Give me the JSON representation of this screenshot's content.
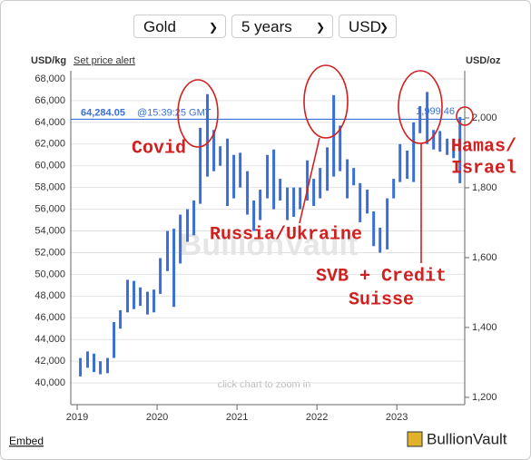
{
  "controls": {
    "metal": "Gold",
    "period": "5 years",
    "currency": "USD"
  },
  "links": {
    "set_price_alert": "Set price alert",
    "embed": "Embed"
  },
  "logo": "BullionVault",
  "chart_data": {
    "type": "range-bar",
    "ylabel": "USD/kg",
    "y2label": "USD/oz",
    "watermark": "BullionVault",
    "zoom_hint": "click chart to zoom in",
    "color": "#3a6fd8",
    "xlim": [
      2018.92,
      2023.85
    ],
    "xticks": [
      2019,
      2020,
      2021,
      2022,
      2023
    ],
    "ylim": [
      38000,
      68750
    ],
    "yticks": [
      {
        "value": 40000,
        "label": "40,000"
      },
      {
        "value": 42000,
        "label": "42,000"
      },
      {
        "value": 44000,
        "label": "44,000"
      },
      {
        "value": 46000,
        "label": "46,000"
      },
      {
        "value": 48000,
        "label": "48,000"
      },
      {
        "value": 50000,
        "label": "50,000"
      },
      {
        "value": 52000,
        "label": "52,000"
      },
      {
        "value": 54000,
        "label": "54,000"
      },
      {
        "value": 56000,
        "label": "56,000"
      },
      {
        "value": 58000,
        "label": "58,000"
      },
      {
        "value": 60000,
        "label": "60,000"
      },
      {
        "value": 62000,
        "label": "62,000"
      },
      {
        "value": 64000,
        "label": "64,000"
      },
      {
        "value": 66000,
        "label": "66,000"
      },
      {
        "value": 68000,
        "label": "68,000"
      }
    ],
    "y2lim": [
      1179,
      2135
    ],
    "y2ticks": [
      {
        "value": 1200,
        "label": "1,200"
      },
      {
        "value": 1400,
        "label": "1,400"
      },
      {
        "value": 1600,
        "label": "1,600"
      },
      {
        "value": 1800,
        "label": "1,800"
      },
      {
        "value": 2000,
        "label": "2,000"
      }
    ],
    "grid": true,
    "price_line": {
      "value": 64284.05,
      "value_label": "64,284.05",
      "time": "@15:39:25 GMT",
      "value_oz": 1999.46,
      "value_oz_label": "1,999.46"
    },
    "x": [
      2019.04,
      2019.13,
      2019.21,
      2019.29,
      2019.38,
      2019.46,
      2019.54,
      2019.63,
      2019.71,
      2019.79,
      2019.88,
      2019.96,
      2020.04,
      2020.13,
      2020.21,
      2020.29,
      2020.38,
      2020.46,
      2020.54,
      2020.63,
      2020.71,
      2020.79,
      2020.88,
      2020.96,
      2021.04,
      2021.13,
      2021.21,
      2021.29,
      2021.38,
      2021.46,
      2021.54,
      2021.63,
      2021.71,
      2021.79,
      2021.88,
      2021.96,
      2022.04,
      2022.13,
      2022.21,
      2022.29,
      2022.38,
      2022.46,
      2022.54,
      2022.63,
      2022.71,
      2022.79,
      2022.88,
      2022.96,
      2023.04,
      2023.13,
      2023.21,
      2023.29,
      2023.38,
      2023.46,
      2023.54,
      2023.63,
      2023.71,
      2023.79
    ],
    "high": [
      42300,
      42900,
      42700,
      42000,
      42300,
      45600,
      46700,
      49500,
      49400,
      48800,
      48400,
      48600,
      51500,
      54000,
      54200,
      55500,
      56000,
      56800,
      63500,
      66600,
      63300,
      61800,
      62500,
      61000,
      61200,
      59500,
      56800,
      57800,
      61000,
      61500,
      58800,
      58000,
      58000,
      58000,
      60500,
      58800,
      59800,
      61700,
      66500,
      63700,
      60600,
      59800,
      58400,
      57800,
      55800,
      54300,
      57000,
      58800,
      62000,
      61400,
      64000,
      65500,
      66800,
      63300,
      63200,
      62500,
      62500,
      64500
    ],
    "low": [
      40600,
      41400,
      41000,
      40800,
      40900,
      42300,
      45000,
      46500,
      46800,
      47100,
      46300,
      46500,
      48200,
      50300,
      47000,
      51000,
      53000,
      53600,
      56500,
      59000,
      59500,
      60000,
      56300,
      57000,
      58000,
      55500,
      54000,
      55000,
      57000,
      56000,
      56800,
      55000,
      55300,
      56000,
      56800,
      56300,
      57000,
      57700,
      59000,
      59500,
      57000,
      58200,
      54800,
      55600,
      52600,
      52000,
      52300,
      57000,
      58500,
      58800,
      58500,
      63000,
      62000,
      61500,
      61300,
      61000,
      60700,
      58400
    ],
    "annotations": [
      {
        "lines": [
          "Covid"
        ]
      },
      {
        "lines": [
          "Russia/Ukraine"
        ]
      },
      {
        "lines": [
          "SVB + Credit",
          "Suisse"
        ]
      },
      {
        "lines": [
          "Hamas/",
          "Israel"
        ]
      }
    ]
  }
}
